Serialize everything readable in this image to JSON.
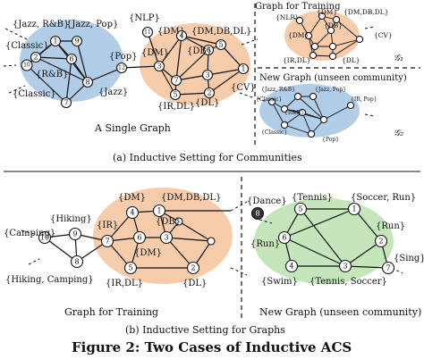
{
  "colors": {
    "music_community": "#a9c8e6",
    "data_community": "#f6c6a2",
    "sport_community": "#bfe3b4",
    "ink": "#111111"
  },
  "panel_a": {
    "single_graph_caption": "A Single Graph",
    "training_title": "Graph for Training",
    "new_graph_title": "New Graph (unseen community)",
    "g1": "𝒢₁",
    "g2": "𝒢₂",
    "caption": "(a)  Inductive Setting for Communities",
    "single_labels": {
      "jazz_rb": "{Jazz, R&B}",
      "jazz_pop": "{Jazz, Pop}",
      "classic_top": "{Classic}",
      "rb": "{R&B}",
      "classic_bottom": "{Classic}",
      "jazz": "{Jazz}",
      "pop": "{Pop}",
      "nlp": "{NLP}",
      "dm_top": "{DM}",
      "dm_db_dl": "{DM,DB,DL}",
      "dm_mid": "{DM}",
      "db": "{DB}",
      "cv": "{CV}",
      "ir_dl": "{IR,DL}",
      "dl": "{DL}"
    },
    "train_labels": {
      "nlp": "{NLP}",
      "dm": "{DM}",
      "dm_db_dl": "{DM,DB,DL}",
      "dm2": "{DM}",
      "db": "{DB}",
      "cv": "{CV}",
      "ir_dl": "{IR,DL}",
      "dl": "{DL}"
    },
    "new_labels": {
      "jazz_rb": "{Jazz, R&B}",
      "jazz_pop": "{Jazz, Pop}",
      "classic": "{Classic}",
      "rb": "{R&B}",
      "ir_pop": "{IR, Pop}",
      "classic2": "{Classic}",
      "pop": "{Pop}"
    }
  },
  "panel_b": {
    "caption": "(b)  Inductive Setting for Graphs",
    "training_caption": "Graph for Training",
    "new_graph_caption": "New Graph (unseen community)",
    "train_labels": {
      "hiking": "{Hiking}",
      "camping": "{Camping}",
      "hiking_camping": "{Hiking, Camping}",
      "ir": "{IR}",
      "dm_top": "{DM}",
      "dm_db_dl": "{DM,DB,DL}",
      "db": "{DB}",
      "dm_mid": "{DM}",
      "ir_dl": "{IR,DL}",
      "dl": "{DL}"
    },
    "new_labels": {
      "dance": "{Dance}",
      "tennis": "{Tennis}",
      "soccer_run": "{Soccer, Run}",
      "run_right": "{Run}",
      "run_left": "{Run}",
      "sing": "{Sing}",
      "swim": "{Swim}",
      "tennis_soccer": "{Tennis, Soccer}"
    }
  },
  "figure_title": "Figure 2: Two Cases of Inductive ACS",
  "node_ids": {
    "a_single": [
      "1",
      "2",
      "3",
      "4",
      "5",
      "6",
      "7",
      "8",
      "9",
      "10",
      "11",
      "12"
    ],
    "b_train": [
      "1",
      "2",
      "3",
      "4",
      "5",
      "6",
      "7",
      "8",
      "9",
      "10"
    ],
    "b_new": [
      "1",
      "2",
      "3",
      "4",
      "5",
      "6",
      "7",
      "8"
    ]
  }
}
